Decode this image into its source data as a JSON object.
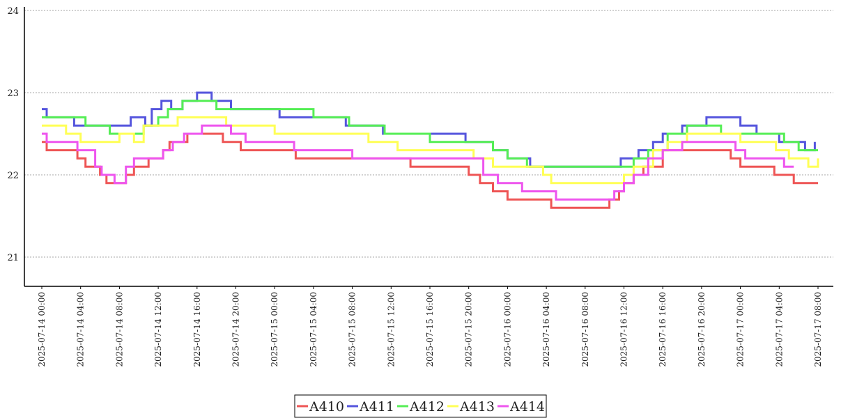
{
  "chart_data": {
    "type": "line",
    "title": "",
    "xlabel": "",
    "ylabel": "",
    "ylim": [
      20.65,
      24.05
    ],
    "xlim": [
      "2025-07-13 23:40",
      "2025-07-17 10:00"
    ],
    "grid": "horizontal dotted",
    "legend": "bottom-center",
    "y_ticks": [
      "21",
      "22",
      "23",
      "24"
    ],
    "x_ticks": [
      "2025-07-14 00:00",
      "2025-07-14 04:00",
      "2025-07-14 08:00",
      "2025-07-14 12:00",
      "2025-07-14 16:00",
      "2025-07-14 20:00",
      "2025-07-15 00:00",
      "2025-07-15 04:00",
      "2025-07-15 08:00",
      "2025-07-15 12:00",
      "2025-07-15 16:00",
      "2025-07-15 20:00",
      "2025-07-16 00:00",
      "2025-07-16 04:00",
      "2025-07-16 08:00",
      "2025-07-16 12:00",
      "2025-07-16 16:00",
      "2025-07-16 20:00",
      "2025-07-17 00:00",
      "2025-07-17 04:00",
      "2025-07-17 08:00"
    ],
    "series": [
      {
        "name": "A410",
        "color": "#ee5555",
        "x": [
          "2025-07-14 00:00",
          "2025-07-14 00:30",
          "2025-07-14 03:40",
          "2025-07-14 04:30",
          "2025-07-14 06:00",
          "2025-07-14 06:40",
          "2025-07-14 07:00",
          "2025-07-14 08:00",
          "2025-07-14 08:40",
          "2025-07-14 09:30",
          "2025-07-14 10:30",
          "2025-07-14 11:00",
          "2025-07-14 12:30",
          "2025-07-14 13:10",
          "2025-07-14 14:30",
          "2025-07-14 15:00",
          "2025-07-14 18:40",
          "2025-07-14 20:30",
          "2025-07-15 02:10",
          "2025-07-15 07:40",
          "2025-07-15 14:00",
          "2025-07-15 20:00",
          "2025-07-15 21:10",
          "2025-07-15 22:30",
          "2025-07-16 00:00",
          "2025-07-16 03:00",
          "2025-07-16 04:30",
          "2025-07-16 08:30",
          "2025-07-16 10:30",
          "2025-07-16 11:30",
          "2025-07-16 12:00",
          "2025-07-16 13:00",
          "2025-07-16 14:00",
          "2025-07-16 16:00",
          "2025-07-16 17:30",
          "2025-07-16 23:00",
          "2025-07-17 00:00",
          "2025-07-17 01:00",
          "2025-07-17 03:30",
          "2025-07-17 05:30",
          "2025-07-17 08:00"
        ],
        "y": [
          22.4,
          22.3,
          22.2,
          22.1,
          22.0,
          21.9,
          21.9,
          21.9,
          22.0,
          22.1,
          22.1,
          22.2,
          22.3,
          22.4,
          22.4,
          22.5,
          22.4,
          22.3,
          22.2,
          22.2,
          22.1,
          22.0,
          21.9,
          21.8,
          21.7,
          21.7,
          21.6,
          21.6,
          21.7,
          21.8,
          21.9,
          22.0,
          22.1,
          22.3,
          22.3,
          22.2,
          22.1,
          22.1,
          22.0,
          21.9,
          21.9
        ]
      },
      {
        "name": "A411",
        "color": "#5555dd",
        "x": [
          "2025-07-14 00:00",
          "2025-07-14 00:30",
          "2025-07-14 03:20",
          "2025-07-14 07:30",
          "2025-07-14 09:10",
          "2025-07-14 10:40",
          "2025-07-14 11:20",
          "2025-07-14 12:20",
          "2025-07-14 13:20",
          "2025-07-14 14:30",
          "2025-07-14 16:00",
          "2025-07-14 17:30",
          "2025-07-14 19:30",
          "2025-07-15 00:30",
          "2025-07-15 03:00",
          "2025-07-15 07:20",
          "2025-07-15 11:10",
          "2025-07-15 12:30",
          "2025-07-15 17:00",
          "2025-07-15 19:40",
          "2025-07-15 22:30",
          "2025-07-16 00:00",
          "2025-07-16 02:20",
          "2025-07-16 10:30",
          "2025-07-16 11:40",
          "2025-07-16 13:30",
          "2025-07-16 15:00",
          "2025-07-16 16:00",
          "2025-07-16 18:00",
          "2025-07-16 20:30",
          "2025-07-17 00:00",
          "2025-07-17 01:40",
          "2025-07-17 04:00",
          "2025-07-17 06:40",
          "2025-07-17 07:40"
        ],
        "y": [
          22.8,
          22.7,
          22.6,
          22.6,
          22.7,
          22.6,
          22.8,
          22.9,
          22.8,
          22.9,
          23.0,
          22.9,
          22.8,
          22.7,
          22.7,
          22.6,
          22.5,
          22.5,
          22.5,
          22.4,
          22.3,
          22.2,
          22.1,
          22.1,
          22.2,
          22.3,
          22.4,
          22.5,
          22.6,
          22.7,
          22.6,
          22.5,
          22.4,
          22.3,
          22.4
        ]
      },
      {
        "name": "A412",
        "color": "#55ee55",
        "x": [
          "2025-07-14 00:00",
          "2025-07-14 00:30",
          "2025-07-14 04:30",
          "2025-07-14 05:20",
          "2025-07-14 07:00",
          "2025-07-14 10:30",
          "2025-07-14 12:00",
          "2025-07-14 13:00",
          "2025-07-14 14:30",
          "2025-07-14 16:00",
          "2025-07-14 18:00",
          "2025-07-14 20:00",
          "2025-07-15 04:00",
          "2025-07-15 07:40",
          "2025-07-15 11:20",
          "2025-07-15 13:00",
          "2025-07-15 16:00",
          "2025-07-15 17:30",
          "2025-07-15 19:00",
          "2025-07-15 22:30",
          "2025-07-16 00:00",
          "2025-07-16 02:00",
          "2025-07-16 09:00",
          "2025-07-16 11:30",
          "2025-07-16 13:00",
          "2025-07-16 14:30",
          "2025-07-16 16:30",
          "2025-07-16 18:30",
          "2025-07-16 22:00",
          "2025-07-17 00:00",
          "2025-07-17 04:30",
          "2025-07-17 06:00",
          "2025-07-17 08:00"
        ],
        "y": [
          22.7,
          22.7,
          22.6,
          22.6,
          22.5,
          22.6,
          22.7,
          22.8,
          22.9,
          22.9,
          22.8,
          22.8,
          22.7,
          22.6,
          22.5,
          22.5,
          22.4,
          22.4,
          22.4,
          22.3,
          22.2,
          22.1,
          22.1,
          22.1,
          22.2,
          22.3,
          22.5,
          22.6,
          22.5,
          22.5,
          22.4,
          22.3,
          22.3
        ]
      },
      {
        "name": "A413",
        "color": "#ffff55",
        "x": [
          "2025-07-14 00:00",
          "2025-07-14 02:30",
          "2025-07-14 04:00",
          "2025-07-14 06:40",
          "2025-07-14 08:00",
          "2025-07-14 09:30",
          "2025-07-14 10:30",
          "2025-07-14 12:30",
          "2025-07-14 14:00",
          "2025-07-14 16:30",
          "2025-07-14 19:00",
          "2025-07-14 20:00",
          "2025-07-15 00:00",
          "2025-07-15 05:00",
          "2025-07-15 09:40",
          "2025-07-15 12:40",
          "2025-07-15 17:00",
          "2025-07-15 20:30",
          "2025-07-15 22:30",
          "2025-07-16 00:00",
          "2025-07-16 03:40",
          "2025-07-16 04:30",
          "2025-07-16 08:30",
          "2025-07-16 10:30",
          "2025-07-16 12:00",
          "2025-07-16 13:00",
          "2025-07-16 15:00",
          "2025-07-16 16:30",
          "2025-07-16 18:30",
          "2025-07-16 21:30",
          "2025-07-17 00:00",
          "2025-07-17 01:30",
          "2025-07-17 03:40",
          "2025-07-17 05:00",
          "2025-07-17 07:00",
          "2025-07-17 08:00"
        ],
        "y": [
          22.6,
          22.5,
          22.4,
          22.4,
          22.5,
          22.4,
          22.6,
          22.6,
          22.7,
          22.7,
          22.6,
          22.6,
          22.5,
          22.5,
          22.4,
          22.3,
          22.3,
          22.2,
          22.1,
          22.1,
          22.0,
          21.9,
          21.9,
          21.9,
          22.0,
          22.1,
          22.3,
          22.4,
          22.5,
          22.5,
          22.4,
          22.4,
          22.3,
          22.2,
          22.1,
          22.2
        ]
      },
      {
        "name": "A414",
        "color": "#ee55ee",
        "x": [
          "2025-07-14 00:00",
          "2025-07-14 00:30",
          "2025-07-14 03:40",
          "2025-07-14 05:30",
          "2025-07-14 06:10",
          "2025-07-14 07:30",
          "2025-07-14 08:40",
          "2025-07-14 09:30",
          "2025-07-14 11:00",
          "2025-07-14 12:30",
          "2025-07-14 13:30",
          "2025-07-14 14:40",
          "2025-07-14 16:30",
          "2025-07-14 19:30",
          "2025-07-14 21:00",
          "2025-07-15 02:00",
          "2025-07-15 06:00",
          "2025-07-15 08:00",
          "2025-07-15 16:30",
          "2025-07-15 21:30",
          "2025-07-15 23:00",
          "2025-07-16 01:30",
          "2025-07-16 03:00",
          "2025-07-16 05:00",
          "2025-07-16 09:00",
          "2025-07-16 11:00",
          "2025-07-16 12:00",
          "2025-07-16 13:00",
          "2025-07-16 14:30",
          "2025-07-16 16:00",
          "2025-07-16 18:00",
          "2025-07-16 20:00",
          "2025-07-16 23:30",
          "2025-07-17 00:30",
          "2025-07-17 04:30",
          "2025-07-17 05:30"
        ],
        "y": [
          22.5,
          22.4,
          22.3,
          22.1,
          22.0,
          21.9,
          22.1,
          22.2,
          22.2,
          22.3,
          22.4,
          22.5,
          22.6,
          22.5,
          22.4,
          22.3,
          22.3,
          22.2,
          22.2,
          22.0,
          21.9,
          21.8,
          21.8,
          21.7,
          21.7,
          21.8,
          21.9,
          22.0,
          22.2,
          22.3,
          22.4,
          22.4,
          22.3,
          22.2,
          22.1,
          22.1
        ]
      }
    ]
  }
}
